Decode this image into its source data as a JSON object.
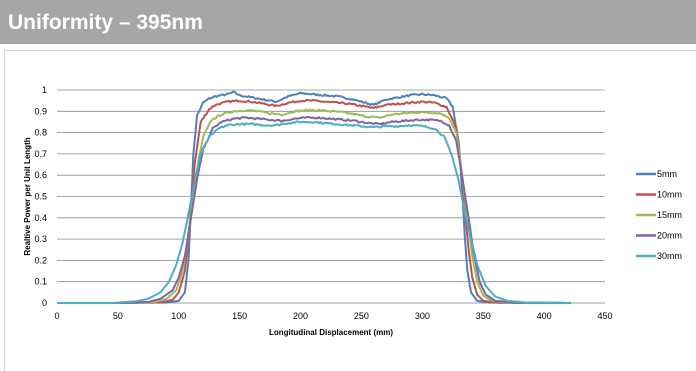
{
  "header": {
    "title": "Uniformity – 395nm",
    "background": "#a6a6a6"
  },
  "chart_data": {
    "type": "line",
    "title": "",
    "xlabel": "Longitudinal Displacement (mm)",
    "ylabel": "Realtive Power per Unit Length",
    "xlim": [
      0,
      450
    ],
    "ylim": [
      0,
      1
    ],
    "x_ticks": [
      "0",
      "50",
      "100",
      "150",
      "200",
      "250",
      "300",
      "350",
      "400",
      "450"
    ],
    "y_ticks": [
      "0",
      "0.1",
      "0.2",
      "0.3",
      "0.4",
      "0.5",
      "0.6",
      "0.7",
      "0.8",
      "0.9",
      "1"
    ],
    "grid": "horizontal",
    "legend_position": "right",
    "series": [
      {
        "name": "5mm",
        "color": "#4f81bd",
        "x": [
          0,
          50,
          90,
          100,
          105,
          108,
          110,
          112,
          115,
          120,
          125,
          130,
          140,
          145,
          150,
          160,
          170,
          180,
          190,
          200,
          210,
          220,
          230,
          240,
          250,
          260,
          270,
          280,
          290,
          300,
          310,
          320,
          325,
          330,
          333,
          335,
          337,
          340,
          345,
          355,
          380,
          422
        ],
        "y": [
          0,
          0,
          0.002,
          0.01,
          0.05,
          0.2,
          0.45,
          0.7,
          0.88,
          0.94,
          0.96,
          0.97,
          0.98,
          0.99,
          0.975,
          0.965,
          0.955,
          0.945,
          0.97,
          0.985,
          0.98,
          0.975,
          0.97,
          0.96,
          0.945,
          0.93,
          0.955,
          0.965,
          0.975,
          0.98,
          0.975,
          0.96,
          0.92,
          0.75,
          0.5,
          0.3,
          0.15,
          0.05,
          0.01,
          0.002,
          0,
          0
        ]
      },
      {
        "name": "10mm",
        "color": "#c0504d",
        "x": [
          0,
          50,
          85,
          95,
          100,
          105,
          108,
          110,
          113,
          118,
          125,
          130,
          140,
          150,
          160,
          170,
          180,
          190,
          200,
          210,
          220,
          230,
          240,
          250,
          260,
          270,
          280,
          290,
          300,
          310,
          320,
          328,
          332,
          335,
          338,
          341,
          345,
          350,
          360,
          422
        ],
        "y": [
          0,
          0,
          0.003,
          0.015,
          0.05,
          0.15,
          0.3,
          0.45,
          0.65,
          0.85,
          0.91,
          0.93,
          0.945,
          0.95,
          0.945,
          0.935,
          0.925,
          0.94,
          0.95,
          0.95,
          0.945,
          0.94,
          0.935,
          0.925,
          0.915,
          0.93,
          0.935,
          0.94,
          0.945,
          0.94,
          0.92,
          0.82,
          0.62,
          0.43,
          0.25,
          0.12,
          0.04,
          0.01,
          0.002,
          0
        ]
      },
      {
        "name": "15mm",
        "color": "#9bbb59",
        "x": [
          0,
          50,
          80,
          90,
          98,
          103,
          107,
          110,
          114,
          120,
          127,
          135,
          145,
          155,
          165,
          175,
          185,
          195,
          205,
          215,
          225,
          235,
          245,
          255,
          265,
          275,
          285,
          295,
          305,
          315,
          322,
          328,
          333,
          337,
          341,
          345,
          350,
          357,
          370,
          422
        ],
        "y": [
          0,
          0,
          0.004,
          0.02,
          0.06,
          0.15,
          0.28,
          0.42,
          0.6,
          0.78,
          0.86,
          0.885,
          0.9,
          0.905,
          0.9,
          0.89,
          0.885,
          0.9,
          0.905,
          0.905,
          0.9,
          0.895,
          0.885,
          0.875,
          0.87,
          0.885,
          0.89,
          0.895,
          0.895,
          0.89,
          0.87,
          0.8,
          0.58,
          0.4,
          0.22,
          0.1,
          0.035,
          0.01,
          0.002,
          0
        ]
      },
      {
        "name": "20mm",
        "color": "#8064a2",
        "x": [
          0,
          50,
          75,
          85,
          95,
          100,
          105,
          110,
          115,
          120,
          128,
          135,
          145,
          155,
          165,
          175,
          185,
          195,
          205,
          215,
          225,
          235,
          245,
          255,
          265,
          275,
          285,
          295,
          305,
          315,
          322,
          328,
          333,
          338,
          342,
          347,
          352,
          360,
          375,
          422
        ],
        "y": [
          0,
          0,
          0.005,
          0.02,
          0.06,
          0.12,
          0.22,
          0.4,
          0.58,
          0.72,
          0.82,
          0.85,
          0.865,
          0.87,
          0.865,
          0.86,
          0.855,
          0.865,
          0.87,
          0.87,
          0.865,
          0.86,
          0.855,
          0.845,
          0.84,
          0.85,
          0.855,
          0.86,
          0.86,
          0.855,
          0.835,
          0.76,
          0.58,
          0.4,
          0.24,
          0.1,
          0.04,
          0.01,
          0.002,
          0
        ]
      },
      {
        "name": "30mm",
        "color": "#4bacc6",
        "x": [
          0,
          45,
          65,
          75,
          85,
          92,
          98,
          103,
          108,
          113,
          118,
          125,
          133,
          140,
          150,
          160,
          170,
          180,
          190,
          200,
          210,
          220,
          230,
          240,
          250,
          260,
          270,
          280,
          290,
          300,
          310,
          318,
          325,
          330,
          335,
          340,
          345,
          352,
          360,
          370,
          385,
          422
        ],
        "y": [
          0,
          0,
          0.008,
          0.02,
          0.05,
          0.1,
          0.18,
          0.28,
          0.42,
          0.57,
          0.7,
          0.78,
          0.82,
          0.835,
          0.84,
          0.84,
          0.835,
          0.835,
          0.845,
          0.85,
          0.85,
          0.845,
          0.84,
          0.835,
          0.83,
          0.825,
          0.83,
          0.83,
          0.835,
          0.83,
          0.82,
          0.78,
          0.68,
          0.57,
          0.42,
          0.3,
          0.18,
          0.08,
          0.03,
          0.01,
          0.002,
          0
        ]
      }
    ]
  }
}
